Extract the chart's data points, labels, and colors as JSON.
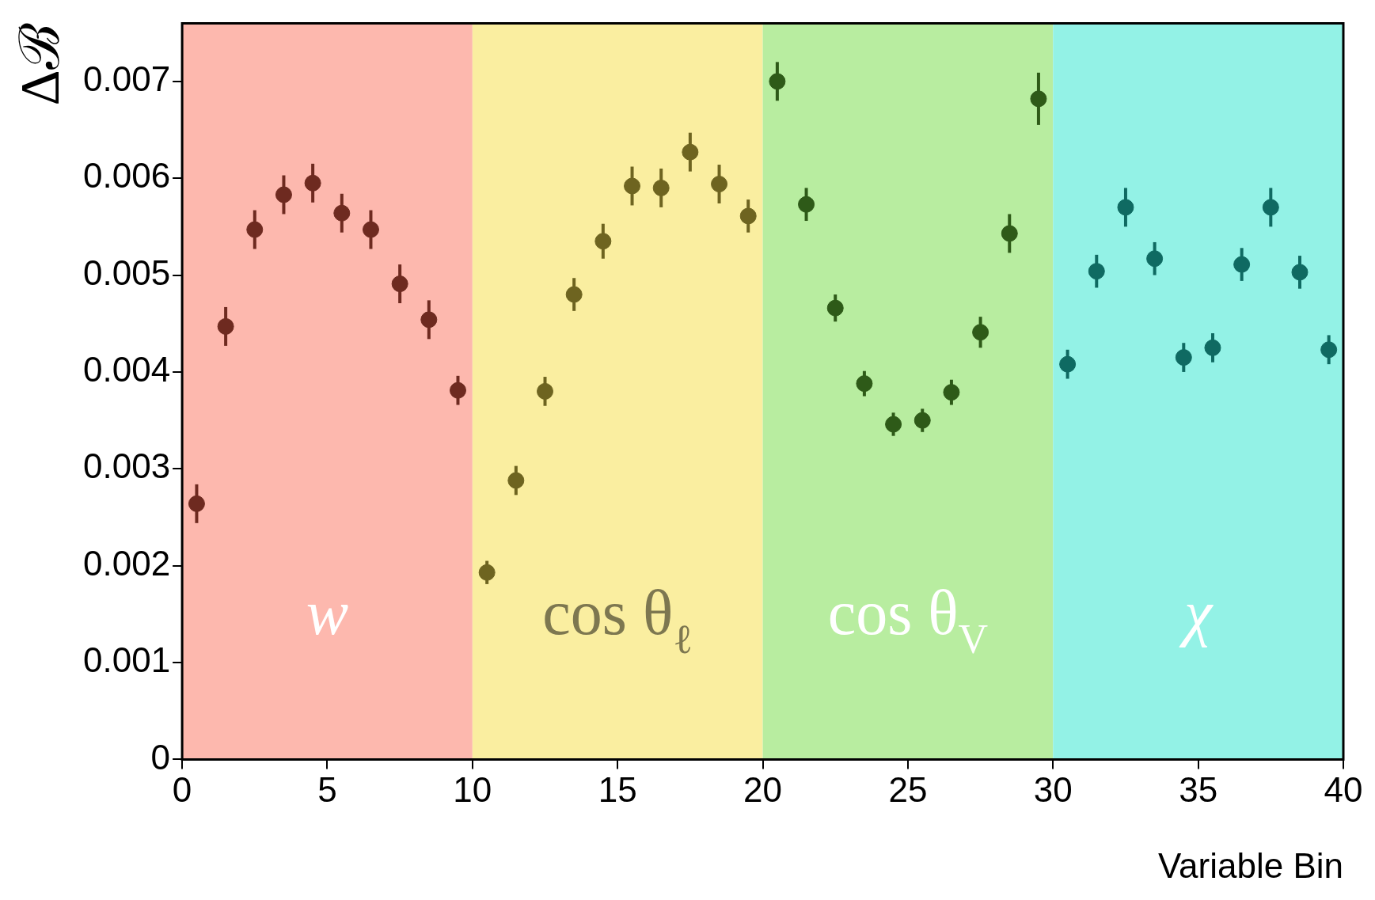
{
  "chart_data": {
    "type": "scatter",
    "xlabel": "Variable Bin",
    "ylabel": "Δℬ",
    "xlim": [
      0,
      40
    ],
    "xticks": [
      0,
      5,
      10,
      15,
      20,
      25,
      30,
      35,
      40
    ],
    "ylim": [
      0,
      0.0076
    ],
    "yticks": [
      0,
      0.001,
      0.002,
      0.003,
      0.004,
      0.005,
      0.006,
      0.007
    ],
    "grid": false,
    "legend": false,
    "marker": "circle",
    "bands": [
      {
        "axis": "x",
        "from": 0,
        "to": 10,
        "label": "w",
        "color": "#fdb8ae"
      },
      {
        "axis": "x",
        "from": 10,
        "to": 20,
        "label": "cos θ$_{ℓ}$",
        "color": "#faeea0"
      },
      {
        "axis": "x",
        "from": 20,
        "to": 30,
        "label": "cos θ$_{V}$",
        "color": "#b8eda0"
      },
      {
        "axis": "x",
        "from": 30,
        "to": 40,
        "label": "χ",
        "color": "#93f2e6"
      }
    ],
    "series": [
      {
        "color": "#6e2a20",
        "x": [
          0.5,
          1.5,
          2.5,
          3.5,
          4.5,
          5.5,
          6.5,
          7.5,
          8.5,
          9.5
        ],
        "values": [
          0.00264,
          0.00447,
          0.00547,
          0.00583,
          0.00595,
          0.00564,
          0.00547,
          0.00491,
          0.00454,
          0.00381
        ],
        "errors": [
          0.0002,
          0.0002,
          0.0002,
          0.0002,
          0.0002,
          0.0002,
          0.0002,
          0.0002,
          0.0002,
          0.00015
        ]
      },
      {
        "color": "#6e6420",
        "x": [
          10.5,
          11.5,
          12.5,
          13.5,
          14.5,
          15.5,
          16.5,
          17.5,
          18.5,
          19.5
        ],
        "values": [
          0.00193,
          0.00288,
          0.0038,
          0.0048,
          0.00535,
          0.00592,
          0.0059,
          0.00627,
          0.00594,
          0.00561
        ],
        "errors": [
          0.00012,
          0.00015,
          0.00015,
          0.00017,
          0.00018,
          0.0002,
          0.0002,
          0.0002,
          0.0002,
          0.00017
        ]
      },
      {
        "color": "#2e5a18",
        "x": [
          20.5,
          21.5,
          22.5,
          23.5,
          24.5,
          25.5,
          26.5,
          27.5,
          28.5,
          29.5
        ],
        "values": [
          0.007,
          0.00573,
          0.00466,
          0.00388,
          0.00346,
          0.0035,
          0.00379,
          0.00441,
          0.00543,
          0.00682
        ],
        "errors": [
          0.0002,
          0.00017,
          0.00014,
          0.00013,
          0.00012,
          0.00012,
          0.00013,
          0.00016,
          0.0002,
          0.00027
        ]
      },
      {
        "color": "#0f6a62",
        "x": [
          30.5,
          31.5,
          32.5,
          33.5,
          34.5,
          35.5,
          36.5,
          37.5,
          38.5,
          39.5
        ],
        "values": [
          0.00408,
          0.00504,
          0.0057,
          0.00517,
          0.00415,
          0.00425,
          0.00511,
          0.0057,
          0.00503,
          0.00423
        ],
        "errors": [
          0.00015,
          0.00017,
          0.0002,
          0.00017,
          0.00015,
          0.00015,
          0.00017,
          0.0002,
          0.00017,
          0.00015
        ]
      }
    ]
  }
}
